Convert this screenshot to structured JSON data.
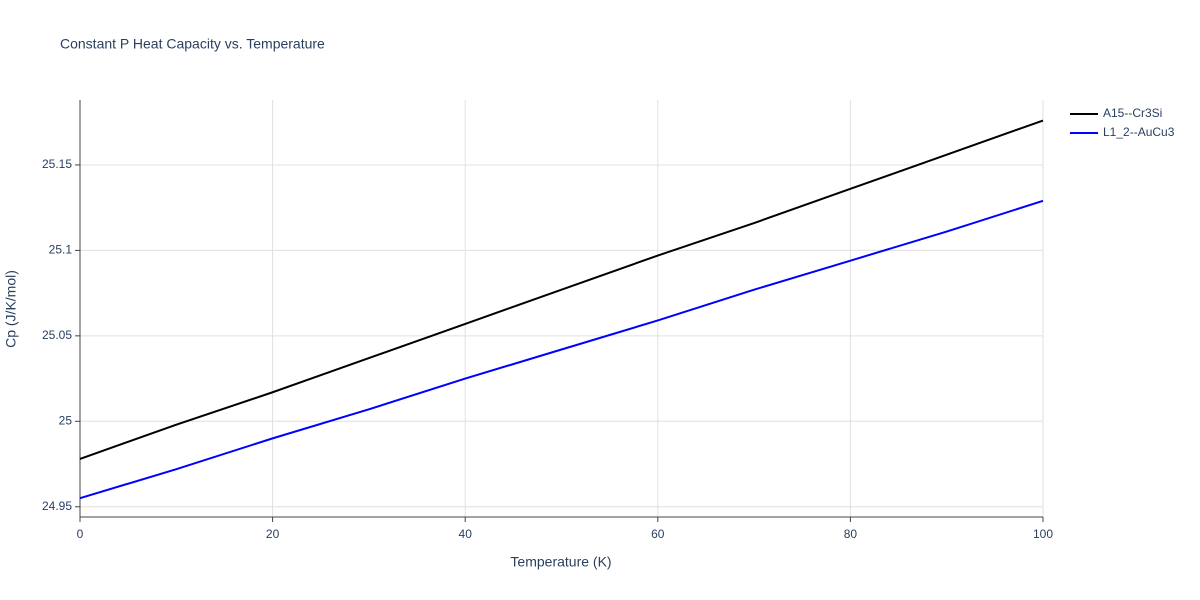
{
  "chart_data": {
    "type": "line",
    "title": "Constant P Heat Capacity vs. Temperature",
    "x_label": "Temperature (K)",
    "y_label": "Cp (J/K/mol)",
    "x": [
      0,
      10,
      20,
      30,
      40,
      50,
      60,
      70,
      80,
      90,
      100
    ],
    "series": [
      {
        "name": "A15--Cr3Si",
        "color": "#000000",
        "values": [
          24.978,
          24.998,
          25.017,
          25.037,
          25.057,
          25.077,
          25.097,
          25.116,
          25.136,
          25.156,
          25.176
        ]
      },
      {
        "name": "L1_2--AuCu3",
        "color": "#0000ff",
        "values": [
          24.955,
          24.972,
          24.99,
          25.007,
          25.025,
          25.042,
          25.059,
          25.077,
          25.094,
          25.111,
          25.129
        ]
      }
    ],
    "xlim": [
      0,
      100
    ],
    "xticks": [
      0,
      20,
      40,
      60,
      80,
      100
    ],
    "ylim": [
      24.944,
      25.188
    ],
    "yticks": [
      24.95,
      25,
      25.05,
      25.1,
      25.15
    ],
    "grid": true,
    "legend": "top-right"
  }
}
